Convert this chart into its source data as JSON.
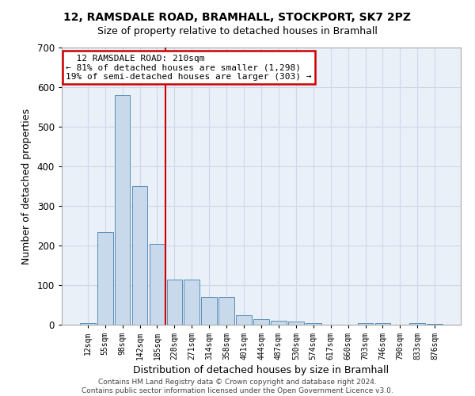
{
  "title1": "12, RAMSDALE ROAD, BRAMHALL, STOCKPORT, SK7 2PZ",
  "title2": "Size of property relative to detached houses in Bramhall",
  "xlabel": "Distribution of detached houses by size in Bramhall",
  "ylabel": "Number of detached properties",
  "footer": "Contains HM Land Registry data © Crown copyright and database right 2024.\nContains public sector information licensed under the Open Government Licence v3.0.",
  "bar_labels": [
    "12sqm",
    "55sqm",
    "98sqm",
    "142sqm",
    "185sqm",
    "228sqm",
    "271sqm",
    "314sqm",
    "358sqm",
    "401sqm",
    "444sqm",
    "487sqm",
    "530sqm",
    "574sqm",
    "617sqm",
    "660sqm",
    "703sqm",
    "746sqm",
    "790sqm",
    "833sqm",
    "876sqm"
  ],
  "bar_values": [
    5,
    235,
    580,
    350,
    205,
    115,
    115,
    70,
    70,
    25,
    15,
    10,
    8,
    5,
    0,
    0,
    5,
    5,
    0,
    5,
    3
  ],
  "bar_color": "#c8d9eb",
  "bar_edge_color": "#5b8db8",
  "grid_color": "#d0d8e8",
  "bg_color": "#eaf0f8",
  "annotation_text": "  12 RAMSDALE ROAD: 210sqm\n← 81% of detached houses are smaller (1,298)\n19% of semi-detached houses are larger (303) →",
  "annotation_box_color": "#ffffff",
  "annotation_box_edge": "#cc0000",
  "vline_x": 4.5,
  "vline_color": "#cc0000",
  "ylim": [
    0,
    700
  ],
  "yticks": [
    0,
    100,
    200,
    300,
    400,
    500,
    600,
    700
  ]
}
